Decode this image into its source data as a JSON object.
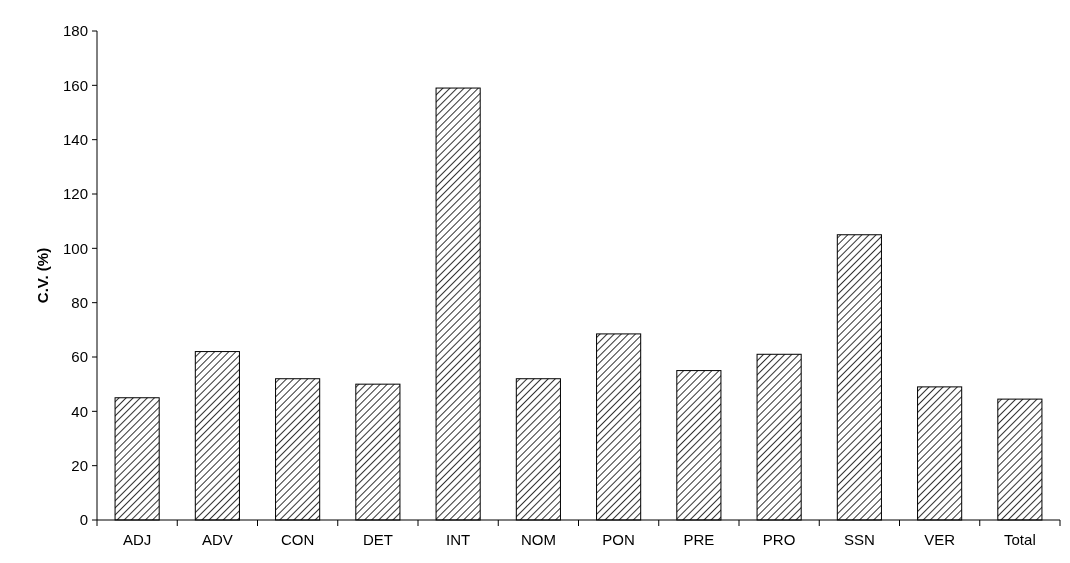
{
  "chart_data": {
    "type": "bar",
    "ylabel": "C.V. (%)",
    "categories": [
      "ADJ",
      "ADV",
      "CON",
      "DET",
      "INT",
      "NOM",
      "PON",
      "PRE",
      "PRO",
      "SSN",
      "VER",
      "Total"
    ],
    "values": [
      45,
      62,
      52,
      50,
      159,
      52,
      68.5,
      55,
      61,
      105,
      49,
      44.5
    ],
    "color": "#000000",
    "ylim": [
      0,
      180
    ],
    "yticks": [
      0,
      20,
      40,
      60,
      80,
      100,
      120,
      140,
      160,
      180
    ],
    "grid": false
  }
}
